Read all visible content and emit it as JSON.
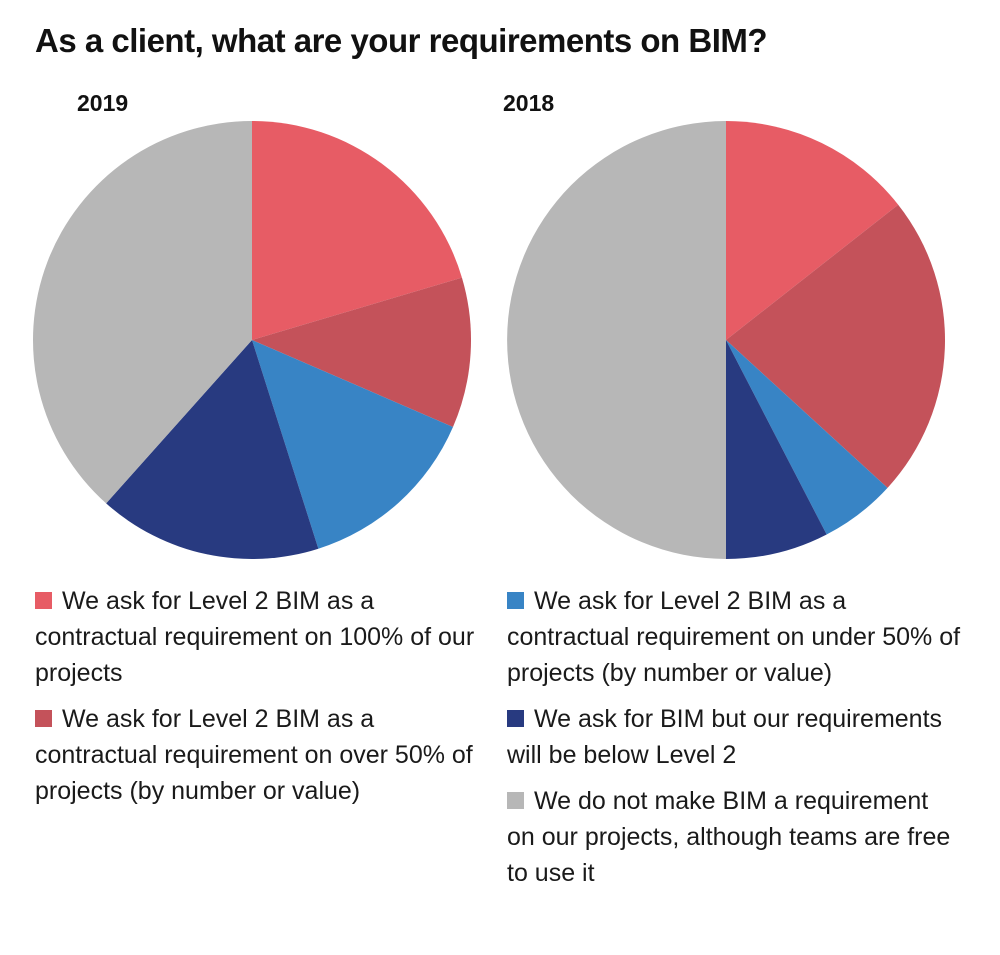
{
  "title": "As a client, what are your requirements on BIM?",
  "chart_data": [
    {
      "type": "pie",
      "label": "2019",
      "start_angle": "12 o'clock",
      "direction": "clockwise",
      "slices": [
        {
          "legend_index": 0,
          "value": 20.4
        },
        {
          "legend_index": 1,
          "value": 11.1
        },
        {
          "legend_index": 2,
          "value": 13.6
        },
        {
          "legend_index": 3,
          "value": 16.5
        },
        {
          "legend_index": 4,
          "value": 38.4
        }
      ]
    },
    {
      "type": "pie",
      "label": "2018",
      "start_angle": "12 o'clock",
      "direction": "clockwise",
      "slices": [
        {
          "legend_index": 0,
          "value": 14.4
        },
        {
          "legend_index": 1,
          "value": 22.4
        },
        {
          "legend_index": 2,
          "value": 5.6
        },
        {
          "legend_index": 3,
          "value": 7.6
        },
        {
          "legend_index": 4,
          "value": 50.0
        }
      ]
    }
  ],
  "legend": [
    {
      "color": "#e75c65",
      "text": "We ask for Level 2 BIM as a contractual requirement on 100% of our projects"
    },
    {
      "color": "#c4525a",
      "text": "We ask for Level 2 BIM as a contractual requirement on over 50% of projects (by number or value)"
    },
    {
      "color": "#3884c5",
      "text": "We ask for Level 2 BIM as a contractual requirement on under 50% of projects (by number or value)"
    },
    {
      "color": "#283a80",
      "text": "We ask for BIM but our requirements will be below Level 2"
    },
    {
      "color": "#b7b7b7",
      "text": "We do not make BIM a requirement on our projects, although teams are free to use it"
    }
  ]
}
